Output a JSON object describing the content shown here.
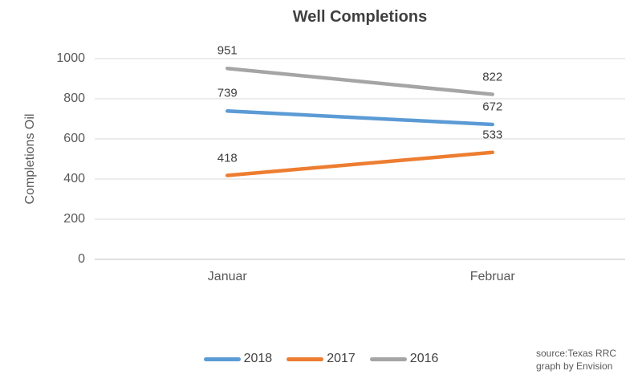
{
  "chart_data": {
    "type": "line",
    "title": "Well Completions",
    "xlabel": "",
    "ylabel": "Completions Oil",
    "categories": [
      "Januar",
      "Februar"
    ],
    "series": [
      {
        "name": "2018",
        "color": "#5B9BD5",
        "values": [
          739,
          672
        ]
      },
      {
        "name": "2017",
        "color": "#ED7D31",
        "values": [
          418,
          533
        ]
      },
      {
        "name": "2016",
        "color": "#A5A5A5",
        "values": [
          951,
          822
        ]
      }
    ],
    "ylim": [
      0,
      1000
    ],
    "ytick_step": 200,
    "grid": true,
    "data_labels": true,
    "legend_position": "bottom"
  },
  "source": {
    "line1": "source:Texas RRC",
    "line2": "graph by Envision"
  },
  "colors": {
    "gridline": "#D9D9D9",
    "axis_line": "#BFBFBF",
    "title_text": "#404040",
    "axis_text": "#595959"
  }
}
